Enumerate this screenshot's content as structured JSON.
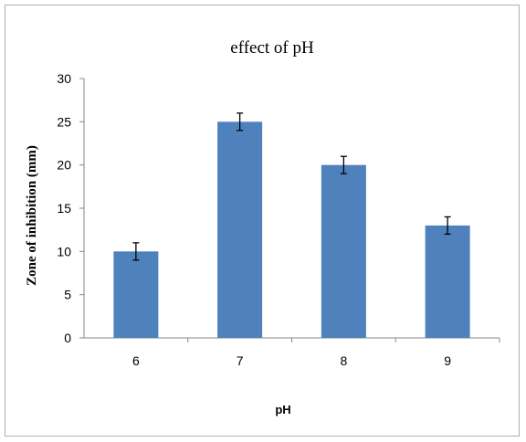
{
  "chart_data": {
    "type": "bar",
    "title": "effect of pH",
    "xlabel": "pH",
    "ylabel": "Zone of inhibition (mm)",
    "categories": [
      "6",
      "7",
      "8",
      "9"
    ],
    "series": [
      {
        "values": [
          10,
          25,
          20,
          13
        ],
        "errors": [
          1,
          1,
          1,
          1
        ],
        "color": "#4f81bd"
      }
    ],
    "ylim": [
      0,
      30
    ],
    "yticks": [
      0,
      5,
      10,
      15,
      20,
      25,
      30
    ],
    "grid": false,
    "legend": "none"
  }
}
